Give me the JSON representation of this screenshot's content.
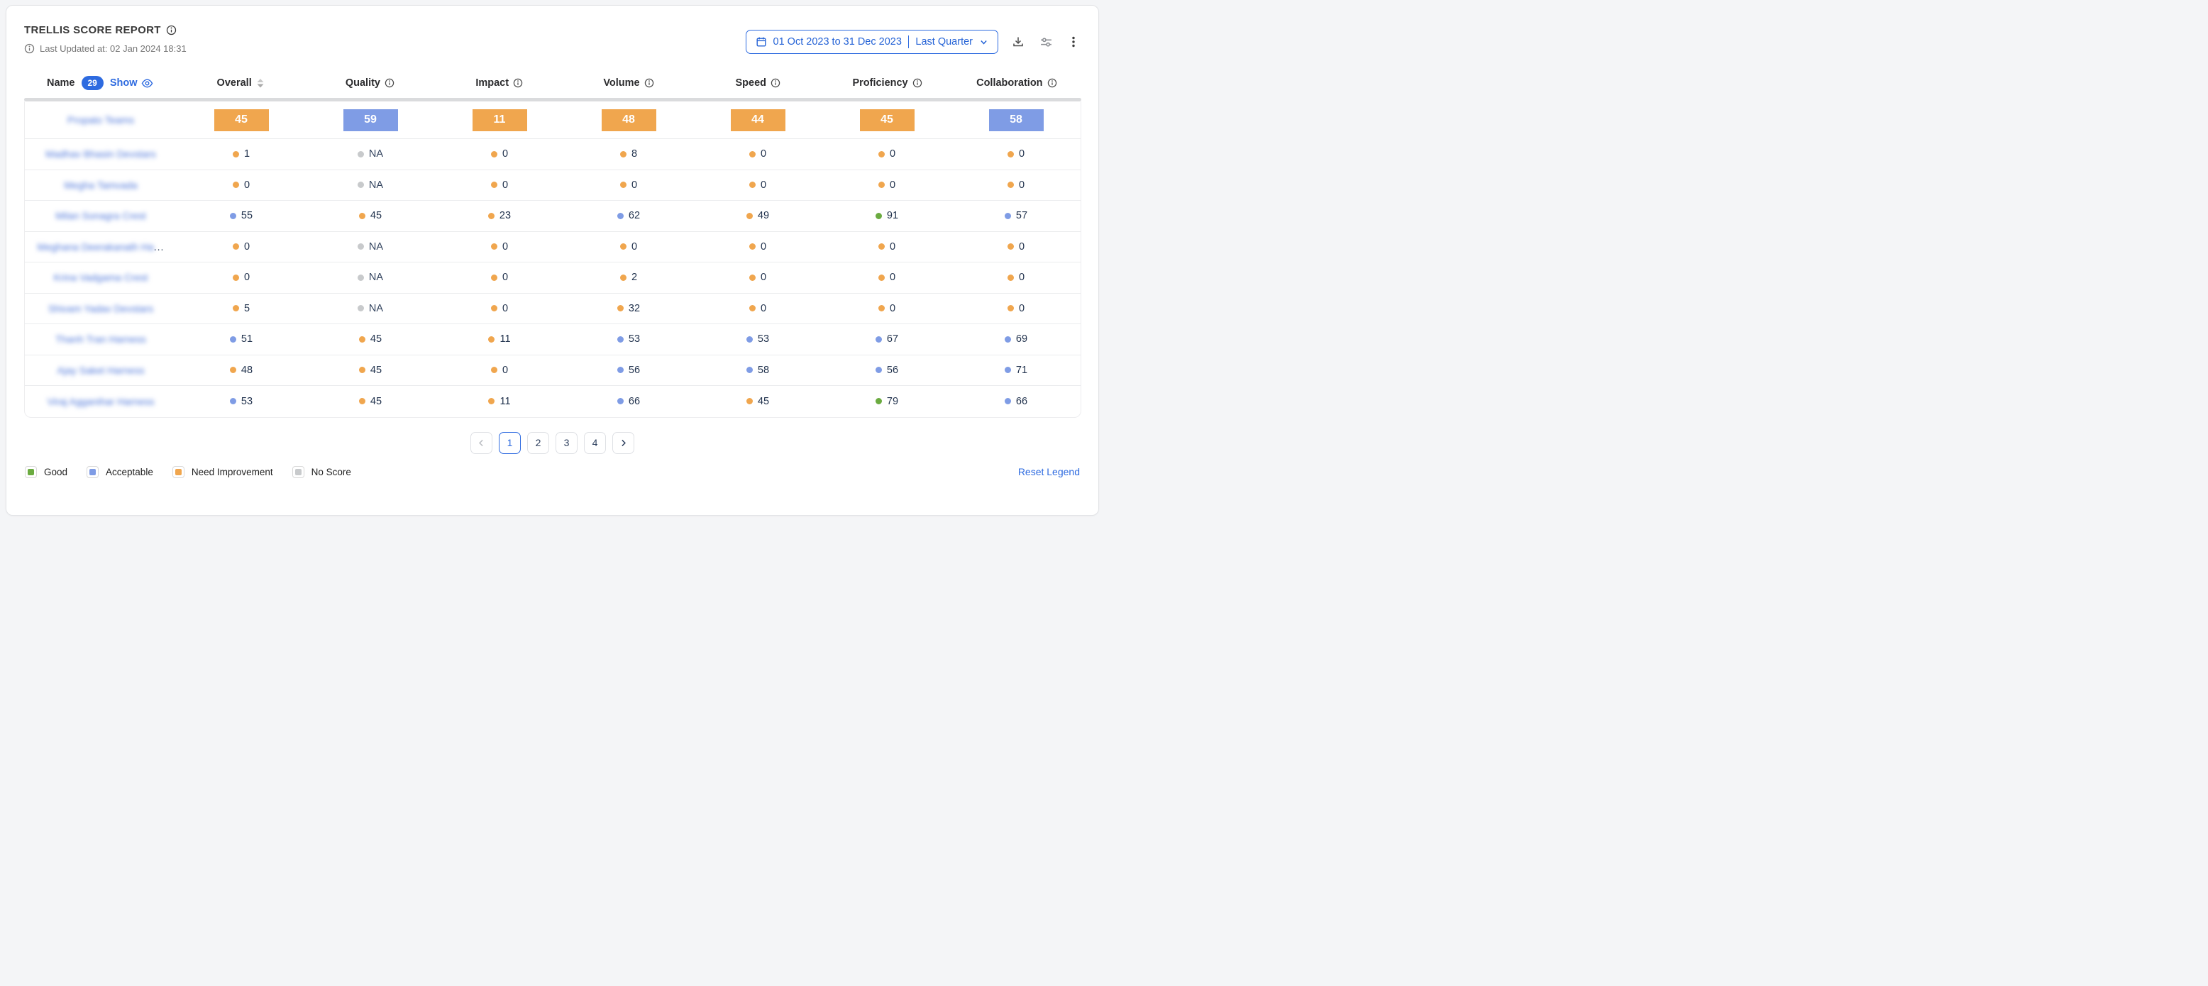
{
  "header": {
    "title": "TRELLIS SCORE REPORT",
    "last_updated": "Last Updated at: 02 Jan 2024 18:31",
    "date_range": "01 Oct 2023 to 31 Dec 2023",
    "date_preset": "Last Quarter"
  },
  "colors": {
    "good": "#6BAB40",
    "acceptable": "#7F9CE5",
    "need_improvement": "#F0A64E",
    "no_score": "#C8CACC",
    "accent_blue": "#2E6BE0"
  },
  "table": {
    "name_header": "Name",
    "name_count": "29",
    "show_label": "Show",
    "ellipsis": "...",
    "columns": [
      {
        "label": "Overall",
        "icon": "sort"
      },
      {
        "label": "Quality",
        "icon": "info"
      },
      {
        "label": "Impact",
        "icon": "info"
      },
      {
        "label": "Volume",
        "icon": "info"
      },
      {
        "label": "Speed",
        "icon": "info"
      },
      {
        "label": "Proficiency",
        "icon": "info"
      },
      {
        "label": "Collaboration",
        "icon": "info"
      }
    ],
    "rows": [
      {
        "name": "Propato Teams",
        "type": "badge",
        "truncated": false,
        "scores": [
          {
            "v": "45",
            "c": "need_improvement"
          },
          {
            "v": "59",
            "c": "acceptable"
          },
          {
            "v": "11",
            "c": "need_improvement"
          },
          {
            "v": "48",
            "c": "need_improvement"
          },
          {
            "v": "44",
            "c": "need_improvement"
          },
          {
            "v": "45",
            "c": "need_improvement"
          },
          {
            "v": "58",
            "c": "acceptable"
          }
        ]
      },
      {
        "name": "Madhav Bhasin Devstars",
        "type": "dots",
        "truncated": false,
        "scores": [
          {
            "v": "1",
            "c": "need_improvement"
          },
          {
            "v": "NA",
            "c": "no_score"
          },
          {
            "v": "0",
            "c": "need_improvement"
          },
          {
            "v": "8",
            "c": "need_improvement"
          },
          {
            "v": "0",
            "c": "need_improvement"
          },
          {
            "v": "0",
            "c": "need_improvement"
          },
          {
            "v": "0",
            "c": "need_improvement"
          }
        ]
      },
      {
        "name": "Megha Tamvada",
        "type": "dots",
        "truncated": false,
        "scores": [
          {
            "v": "0",
            "c": "need_improvement"
          },
          {
            "v": "NA",
            "c": "no_score"
          },
          {
            "v": "0",
            "c": "need_improvement"
          },
          {
            "v": "0",
            "c": "need_improvement"
          },
          {
            "v": "0",
            "c": "need_improvement"
          },
          {
            "v": "0",
            "c": "need_improvement"
          },
          {
            "v": "0",
            "c": "need_improvement"
          }
        ]
      },
      {
        "name": "Milan Sonagra Crest",
        "type": "dots",
        "truncated": false,
        "scores": [
          {
            "v": "55",
            "c": "acceptable"
          },
          {
            "v": "45",
            "c": "need_improvement"
          },
          {
            "v": "23",
            "c": "need_improvement"
          },
          {
            "v": "62",
            "c": "acceptable"
          },
          {
            "v": "49",
            "c": "need_improvement"
          },
          {
            "v": "91",
            "c": "good"
          },
          {
            "v": "57",
            "c": "acceptable"
          }
        ]
      },
      {
        "name": "Meghana Deerakanath Ha",
        "type": "dots",
        "truncated": true,
        "scores": [
          {
            "v": "0",
            "c": "need_improvement"
          },
          {
            "v": "NA",
            "c": "no_score"
          },
          {
            "v": "0",
            "c": "need_improvement"
          },
          {
            "v": "0",
            "c": "need_improvement"
          },
          {
            "v": "0",
            "c": "need_improvement"
          },
          {
            "v": "0",
            "c": "need_improvement"
          },
          {
            "v": "0",
            "c": "need_improvement"
          }
        ]
      },
      {
        "name": "Krina Vadgama Crest",
        "type": "dots",
        "truncated": false,
        "scores": [
          {
            "v": "0",
            "c": "need_improvement"
          },
          {
            "v": "NA",
            "c": "no_score"
          },
          {
            "v": "0",
            "c": "need_improvement"
          },
          {
            "v": "2",
            "c": "need_improvement"
          },
          {
            "v": "0",
            "c": "need_improvement"
          },
          {
            "v": "0",
            "c": "need_improvement"
          },
          {
            "v": "0",
            "c": "need_improvement"
          }
        ]
      },
      {
        "name": "Shivam Yadav Devstars",
        "type": "dots",
        "truncated": false,
        "scores": [
          {
            "v": "5",
            "c": "need_improvement"
          },
          {
            "v": "NA",
            "c": "no_score"
          },
          {
            "v": "0",
            "c": "need_improvement"
          },
          {
            "v": "32",
            "c": "need_improvement"
          },
          {
            "v": "0",
            "c": "need_improvement"
          },
          {
            "v": "0",
            "c": "need_improvement"
          },
          {
            "v": "0",
            "c": "need_improvement"
          }
        ]
      },
      {
        "name": "Thanh Tran Harness",
        "type": "dots",
        "truncated": false,
        "scores": [
          {
            "v": "51",
            "c": "acceptable"
          },
          {
            "v": "45",
            "c": "need_improvement"
          },
          {
            "v": "11",
            "c": "need_improvement"
          },
          {
            "v": "53",
            "c": "acceptable"
          },
          {
            "v": "53",
            "c": "acceptable"
          },
          {
            "v": "67",
            "c": "acceptable"
          },
          {
            "v": "69",
            "c": "acceptable"
          }
        ]
      },
      {
        "name": "Ajay Saket Harness",
        "type": "dots",
        "truncated": false,
        "scores": [
          {
            "v": "48",
            "c": "need_improvement"
          },
          {
            "v": "45",
            "c": "need_improvement"
          },
          {
            "v": "0",
            "c": "need_improvement"
          },
          {
            "v": "56",
            "c": "acceptable"
          },
          {
            "v": "58",
            "c": "acceptable"
          },
          {
            "v": "56",
            "c": "acceptable"
          },
          {
            "v": "71",
            "c": "acceptable"
          }
        ]
      },
      {
        "name": "Viraj Agganihar Harness",
        "type": "dots",
        "truncated": false,
        "scores": [
          {
            "v": "53",
            "c": "acceptable"
          },
          {
            "v": "45",
            "c": "need_improvement"
          },
          {
            "v": "11",
            "c": "need_improvement"
          },
          {
            "v": "66",
            "c": "acceptable"
          },
          {
            "v": "45",
            "c": "need_improvement"
          },
          {
            "v": "79",
            "c": "good"
          },
          {
            "v": "66",
            "c": "acceptable"
          }
        ]
      }
    ]
  },
  "pagination": {
    "pages": [
      "1",
      "2",
      "3",
      "4"
    ],
    "active": "1"
  },
  "legend": {
    "items": [
      {
        "label": "Good",
        "color_key": "good"
      },
      {
        "label": "Acceptable",
        "color_key": "acceptable"
      },
      {
        "label": "Need Improvement",
        "color_key": "need_improvement"
      },
      {
        "label": "No Score",
        "color_key": "no_score"
      }
    ],
    "reset_label": "Reset Legend"
  }
}
